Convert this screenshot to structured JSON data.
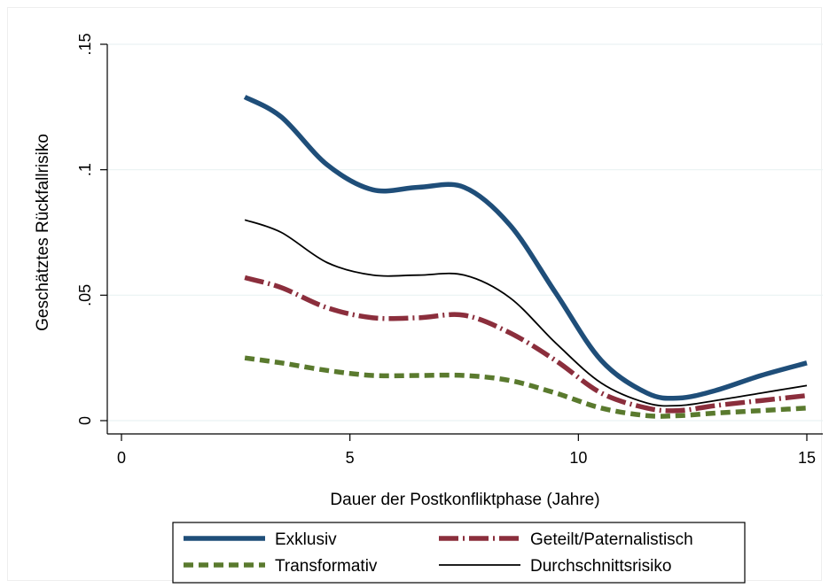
{
  "chart_data": {
    "type": "line",
    "title": "",
    "xlabel": "Dauer der Postkonfliktphase (Jahre)",
    "ylabel": "Geschätztes Rückfallrisiko",
    "xlim": [
      0,
      15
    ],
    "ylim": [
      0,
      0.15
    ],
    "x_ticks": [
      {
        "value": 0,
        "label": "0"
      },
      {
        "value": 5,
        "label": "5"
      },
      {
        "value": 10,
        "label": "10"
      },
      {
        "value": 15,
        "label": "15"
      }
    ],
    "y_ticks": [
      {
        "value": 0,
        "label": "0"
      },
      {
        "value": 0.05,
        "label": ".05"
      },
      {
        "value": 0.1,
        "label": ".1"
      },
      {
        "value": 0.15,
        "label": ".15"
      }
    ],
    "grid": "horizontal",
    "legend_position": "bottom",
    "series": [
      {
        "name": "Exklusiv",
        "color": "#1f4e79",
        "style": "solid-thick",
        "x": [
          2.7,
          3.5,
          4.5,
          5.5,
          6.5,
          7.5,
          8.5,
          9.5,
          10.5,
          11.5,
          12.2,
          13,
          14,
          15
        ],
        "y": [
          0.129,
          0.121,
          0.102,
          0.092,
          0.093,
          0.093,
          0.078,
          0.051,
          0.024,
          0.011,
          0.009,
          0.012,
          0.018,
          0.023
        ]
      },
      {
        "name": "Geteilt/Paternalistisch",
        "color": "#8b2e3c",
        "style": "dash-dot-thick",
        "x": [
          2.7,
          3.5,
          4.5,
          5.5,
          6.5,
          7.5,
          8.5,
          9.5,
          10.5,
          11.5,
          12.2,
          13,
          14,
          15
        ],
        "y": [
          0.057,
          0.053,
          0.045,
          0.041,
          0.041,
          0.042,
          0.035,
          0.024,
          0.011,
          0.005,
          0.004,
          0.006,
          0.008,
          0.01
        ]
      },
      {
        "name": "Transformativ",
        "color": "#5a7a2e",
        "style": "dashed-thick",
        "x": [
          2.7,
          3.5,
          4.5,
          5.5,
          6.5,
          7.5,
          8.5,
          9.5,
          10.5,
          11.5,
          12.2,
          13,
          14,
          15
        ],
        "y": [
          0.025,
          0.023,
          0.02,
          0.018,
          0.018,
          0.018,
          0.016,
          0.011,
          0.005,
          0.002,
          0.002,
          0.003,
          0.004,
          0.005
        ]
      },
      {
        "name": "Durchschnittsrisiko",
        "color": "#000000",
        "style": "solid-thin",
        "x": [
          2.7,
          3.5,
          4.5,
          5.5,
          6.5,
          7.5,
          8.5,
          9.5,
          10.5,
          11.5,
          12.2,
          13,
          14,
          15
        ],
        "y": [
          0.08,
          0.075,
          0.063,
          0.058,
          0.058,
          0.058,
          0.049,
          0.031,
          0.015,
          0.007,
          0.006,
          0.008,
          0.011,
          0.014
        ]
      }
    ],
    "legend_order": [
      "Exklusiv",
      "Geteilt/Paternalistisch",
      "Transformativ",
      "Durchschnittsrisiko"
    ]
  }
}
